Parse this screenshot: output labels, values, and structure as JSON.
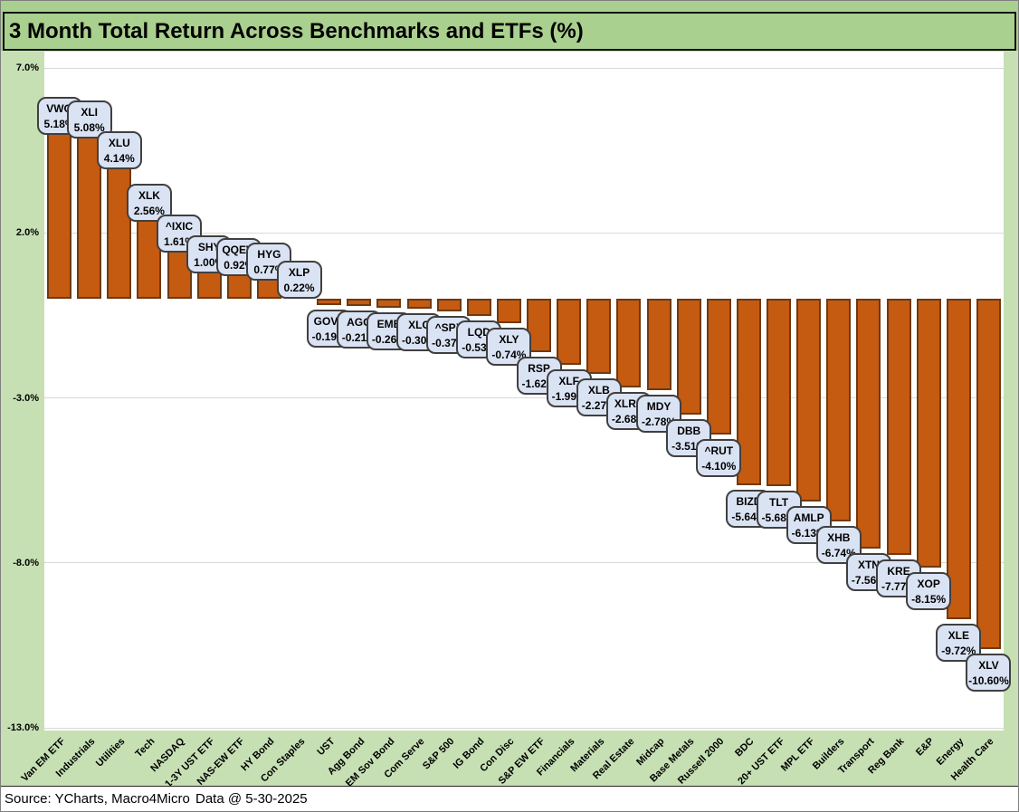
{
  "title": "3 Month Total Return Across Benchmarks and ETFs (%)",
  "footer": {
    "source": "Source: YCharts, Macro4Micro",
    "data_date": "Data @ 5-30-2025"
  },
  "colors": {
    "page_background": "#C6E0B4",
    "header_background": "#A9D08E",
    "plot_background": "#FFFFFF",
    "bar_fill": "#C55A11",
    "bar_border": "#6E3A10",
    "label_box_fill": "#DAE3F3",
    "label_box_border": "#404040",
    "gridline": "#D9D9D9"
  },
  "chart_data": {
    "type": "bar",
    "title": "3 Month Total Return Across Benchmarks and ETFs (%)",
    "xlabel": "",
    "ylabel": "",
    "ylim": [
      -13,
      7
    ],
    "grid": true,
    "y_axis": {
      "tick_values": [
        7,
        2,
        -3,
        -8,
        -13
      ],
      "tick_labels": [
        "7.0%",
        "2.0%",
        "-3.0%",
        "-8.0%",
        "-13.0%"
      ]
    },
    "points": [
      {
        "ticker": "VWO",
        "category": "Van EM ETF",
        "value": 5.18
      },
      {
        "ticker": "XLI",
        "category": "Industrials",
        "value": 5.08
      },
      {
        "ticker": "XLU",
        "category": "Utilities",
        "value": 4.14
      },
      {
        "ticker": "XLK",
        "category": "Tech",
        "value": 2.56
      },
      {
        "ticker": "^IXIC",
        "category": "NASDAQ",
        "value": 1.61
      },
      {
        "ticker": "SHY",
        "category": "1-3Y UST ETF",
        "value": 1.0
      },
      {
        "ticker": "QQEW",
        "category": "NAS-EW ETF",
        "value": 0.92
      },
      {
        "ticker": "HYG",
        "category": "HY Bond",
        "value": 0.77
      },
      {
        "ticker": "XLP",
        "category": "Con Staples",
        "value": 0.22
      },
      {
        "ticker": "GOVT",
        "category": "UST",
        "value": -0.19
      },
      {
        "ticker": "AGG",
        "category": "Agg Bond",
        "value": -0.21
      },
      {
        "ticker": "EMB",
        "category": "EM Sov Bond",
        "value": -0.26
      },
      {
        "ticker": "XLC",
        "category": "Com Serve",
        "value": -0.3
      },
      {
        "ticker": "^SPX",
        "category": "S&P 500",
        "value": -0.37
      },
      {
        "ticker": "LQD",
        "category": "IG Bond",
        "value": -0.53
      },
      {
        "ticker": "XLY",
        "category": "Con Disc",
        "value": -0.74
      },
      {
        "ticker": "RSP",
        "category": "S&P EW ETF",
        "value": -1.62
      },
      {
        "ticker": "XLF",
        "category": "Financials",
        "value": -1.99
      },
      {
        "ticker": "XLB",
        "category": "Materials",
        "value": -2.27
      },
      {
        "ticker": "XLRE",
        "category": "Real Estate",
        "value": -2.68
      },
      {
        "ticker": "MDY",
        "category": "Midcap",
        "value": -2.78
      },
      {
        "ticker": "DBB",
        "category": "Base Metals",
        "value": -3.51
      },
      {
        "ticker": "^RUT",
        "category": "Russell 2000",
        "value": -4.1
      },
      {
        "ticker": "BIZD",
        "category": "BDC",
        "value": -5.64
      },
      {
        "ticker": "TLT",
        "category": "20+ UST ETF",
        "value": -5.68
      },
      {
        "ticker": "AMLP",
        "category": "MPL ETF",
        "value": -6.13
      },
      {
        "ticker": "XHB",
        "category": "Builders",
        "value": -6.74
      },
      {
        "ticker": "XTN",
        "category": "Transport",
        "value": -7.56
      },
      {
        "ticker": "KRE",
        "category": "Reg Bank",
        "value": -7.77
      },
      {
        "ticker": "XOP",
        "category": "E&P",
        "value": -8.15
      },
      {
        "ticker": "XLE",
        "category": "Energy",
        "value": -9.72
      },
      {
        "ticker": "XLV",
        "category": "Health Care",
        "value": -10.6
      }
    ]
  }
}
